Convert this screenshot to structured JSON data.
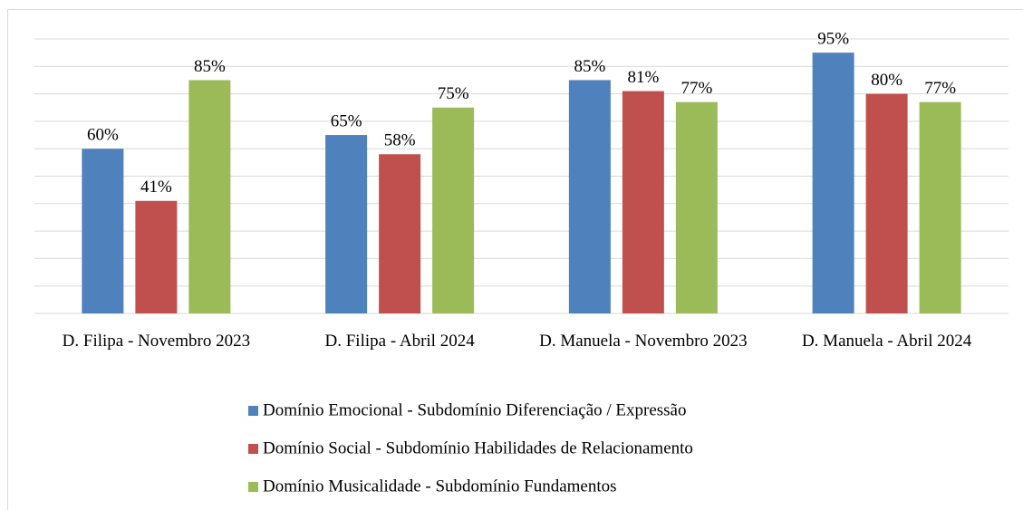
{
  "chart_data": {
    "type": "bar",
    "categories": [
      "D. Filipa - Novembro 2023",
      "D. Filipa - Abril 2024",
      "D. Manuela - Novembro 2023",
      "D. Manuela - Abril 2024"
    ],
    "series": [
      {
        "name": "Domínio Emocional - Subdomínio Diferenciação / Expressão",
        "color": "#4f81bd",
        "values": [
          60,
          65,
          85,
          95
        ],
        "value_labels": [
          "60%",
          "65%",
          "85%",
          "95%"
        ]
      },
      {
        "name": "Domínio Social - Subdomínio Habilidades de Relacionamento",
        "color": "#c0504d",
        "values": [
          41,
          58,
          81,
          80
        ],
        "value_labels": [
          "41%",
          "58%",
          "81%",
          "80%"
        ]
      },
      {
        "name": "Domínio Musicalidade - Subdomínio Fundamentos",
        "color": "#9bbb59",
        "values": [
          85,
          75,
          77,
          77
        ],
        "value_labels": [
          "85%",
          "75%",
          "77%",
          "77%"
        ]
      }
    ],
    "ylim": [
      0,
      100
    ],
    "yticks": [
      0,
      10,
      20,
      30,
      40,
      50,
      60,
      70,
      80,
      90,
      100
    ],
    "grid": true,
    "legend": "bottom"
  }
}
